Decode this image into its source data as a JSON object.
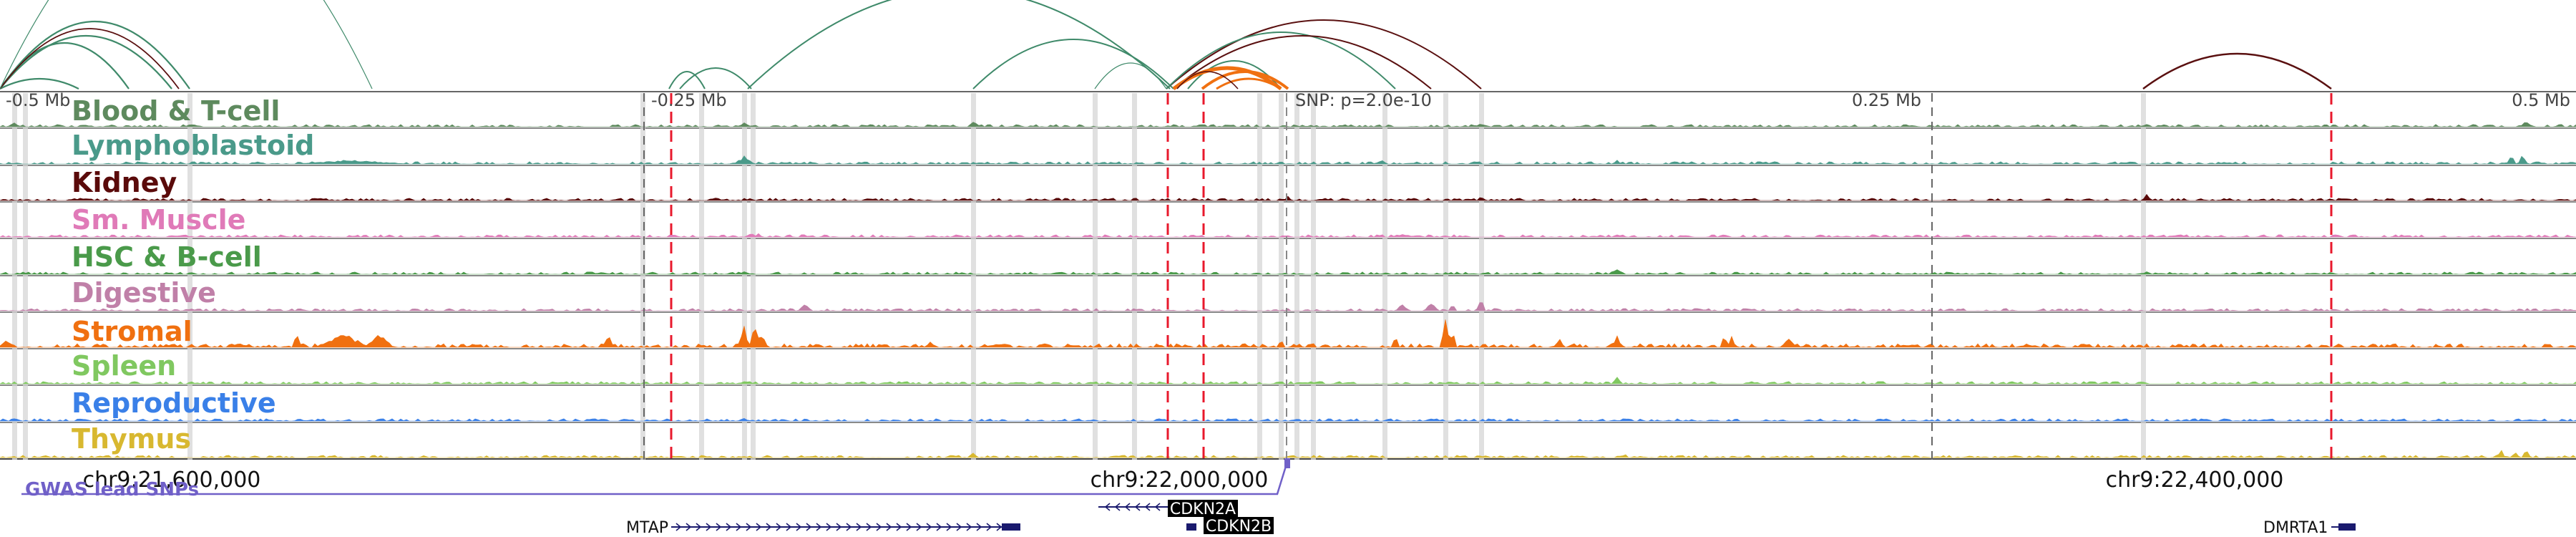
{
  "browser": {
    "offset_labels": {
      "left2": "-0.5 Mb",
      "left1": "-0.25 Mb",
      "right1": "0.25 Mb",
      "right2": "0.5 Mb"
    },
    "snp_label": "SNP: p=2.0e-10",
    "coord_labels": [
      "chr9:21,600,000",
      "chr9:22,000,000",
      "chr9:22,400,000"
    ],
    "gwas_label": "GWAS lead SNPs",
    "colors": {
      "loops_green": "#3f8a6a",
      "loops_dark": "#5a1010",
      "loops_orange": "#f07010",
      "highlight_red": "#e8192c",
      "gwas": "#7060c8",
      "gene": "#1a1a6e"
    }
  },
  "tracks": [
    {
      "label": "Blood & T-cell",
      "color": "#5e8a5e"
    },
    {
      "label": "Lymphoblastoid",
      "color": "#4a9a8a"
    },
    {
      "label": "Kidney",
      "color": "#5a0a0a"
    },
    {
      "label": "Sm. Muscle",
      "color": "#e07ab8"
    },
    {
      "label": "HSC & B-cell",
      "color": "#4a9a4a"
    },
    {
      "label": "Digestive",
      "color": "#c080a8"
    },
    {
      "label": "Stromal",
      "color": "#f07010"
    },
    {
      "label": "Spleen",
      "color": "#80c860"
    },
    {
      "label": "Reproductive",
      "color": "#3a80e8"
    },
    {
      "label": "Thymus",
      "color": "#d8b830"
    }
  ],
  "genes": [
    {
      "name": "MTAP",
      "strand": "+",
      "highlighted": false
    },
    {
      "name": "CDKN2A",
      "strand": "-",
      "highlighted": true
    },
    {
      "name": "CDKN2B",
      "strand": "-",
      "highlighted": true
    },
    {
      "name": "DMRTA1",
      "strand": "+",
      "highlighted": false
    }
  ]
}
